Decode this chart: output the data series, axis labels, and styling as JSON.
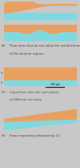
{
  "bg_color": "#c8c8c8",
  "orange_color": "#e8a060",
  "cyan_color": "#80d8e0",
  "wall_color": "#a8b8b8",
  "fig_bg": "#c8c8c8",
  "panel_labels": [
    "a",
    "b",
    "c"
  ],
  "label_texts": [
    "Flow rates that do not allow the establishment\nof the laminar regime",
    "equal flow rates for each phase\nof different viscosity",
    "flows respecting relationship (2)"
  ],
  "scale_bar_text": "100 μm",
  "h1_label": "h1",
  "h2_label": "h2"
}
